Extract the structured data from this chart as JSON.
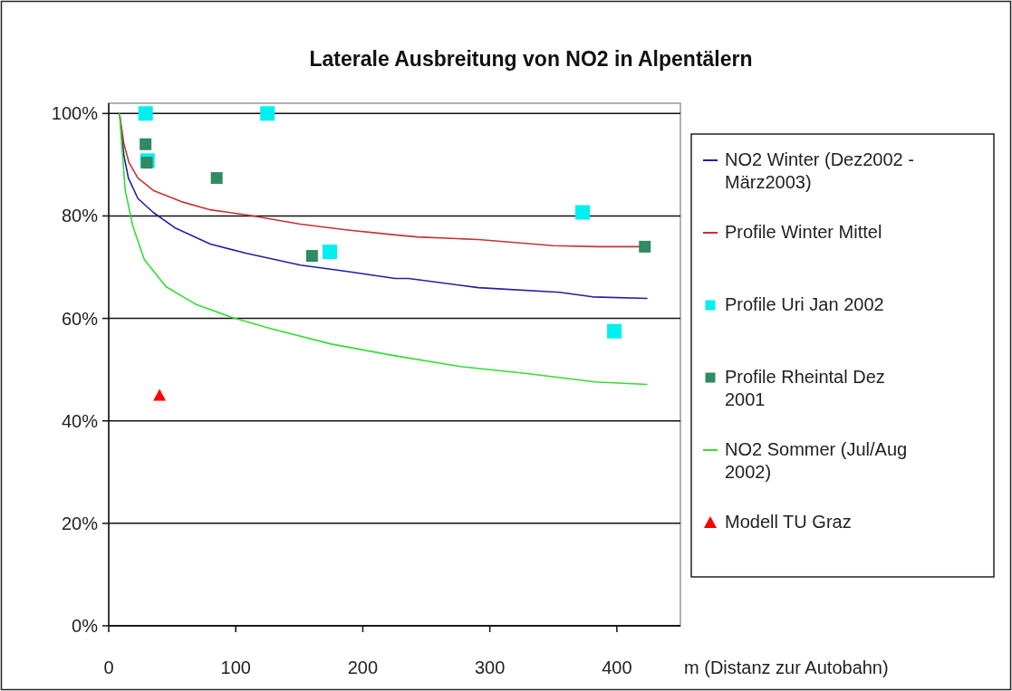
{
  "chart_data": {
    "type": "line",
    "title": "Laterale Ausbreitung von NO2 in Alpentälern",
    "xlabel": "m  (Distanz zur Autobahn)",
    "xlim": [
      0,
      450
    ],
    "xticks": [
      0,
      100,
      200,
      300,
      400
    ],
    "ylim": [
      0,
      102
    ],
    "yticks": [
      {
        "value": 0,
        "label": "0%"
      },
      {
        "value": 20,
        "label": "20%"
      },
      {
        "value": 40,
        "label": "40%"
      },
      {
        "value": 60,
        "label": "60%"
      },
      {
        "value": 80,
        "label": "80%"
      },
      {
        "value": 100,
        "label": "100%"
      }
    ],
    "grid": "y",
    "legend": "right",
    "series": [
      {
        "name": "NO2 Winter (Dez2002 - März2003)",
        "marker": "none",
        "color": "#2020a0",
        "x": [
          8.5,
          12,
          15.5,
          23,
          35,
          52,
          80,
          108.5,
          151,
          186.5,
          225.5,
          236,
          291,
          355,
          381,
          424
        ],
        "values": [
          100,
          91.7,
          87.4,
          83.4,
          80.7,
          77.7,
          74.5,
          72.7,
          70.4,
          69.2,
          67.8,
          67.8,
          66,
          65.1,
          64.2,
          63.9
        ]
      },
      {
        "name": "Profile Winter Mittel",
        "marker": "none",
        "color": "#c83232",
        "x": [
          8.5,
          12,
          16,
          23,
          35,
          57,
          80,
          108.5,
          151,
          186.5,
          225.5,
          243,
          291,
          350,
          385,
          418
        ],
        "values": [
          100,
          94,
          90.4,
          87.4,
          85,
          82.8,
          81.2,
          80.2,
          78.4,
          77.3,
          76.3,
          75.9,
          75.4,
          74.2,
          74,
          74
        ]
      },
      {
        "name": "Profile Uri Jan 2002",
        "type": "scatter",
        "marker": "square",
        "color": "#00f0f0",
        "x": [
          29,
          125,
          30.5,
          174,
          373,
          398
        ],
        "values": [
          100,
          100,
          90.8,
          73,
          80.7,
          57.5
        ]
      },
      {
        "name": "Profile Rheintal Dez 2001",
        "type": "scatter",
        "marker": "square",
        "color": "#2e8b62",
        "x": [
          29,
          30,
          85,
          160,
          422
        ],
        "values": [
          94,
          90.4,
          87.4,
          72.2,
          74
        ]
      },
      {
        "name": "NO2 Sommer (Jul/Aug 2002)",
        "marker": "none",
        "color": "#33dd33",
        "x": [
          8.5,
          10.6,
          13,
          19,
          28,
          45,
          69,
          97,
          128,
          175,
          225.5,
          277,
          331,
          383,
          424
        ],
        "values": [
          100,
          92.7,
          85,
          78,
          71.5,
          66.2,
          62.7,
          60.2,
          58,
          55,
          52.7,
          50.6,
          49.2,
          47.6,
          47.1
        ]
      },
      {
        "name": "Modell TU Graz",
        "type": "scatter",
        "marker": "triangle",
        "color": "#ff0000",
        "x": [
          40
        ],
        "values": [
          45
        ]
      }
    ]
  }
}
